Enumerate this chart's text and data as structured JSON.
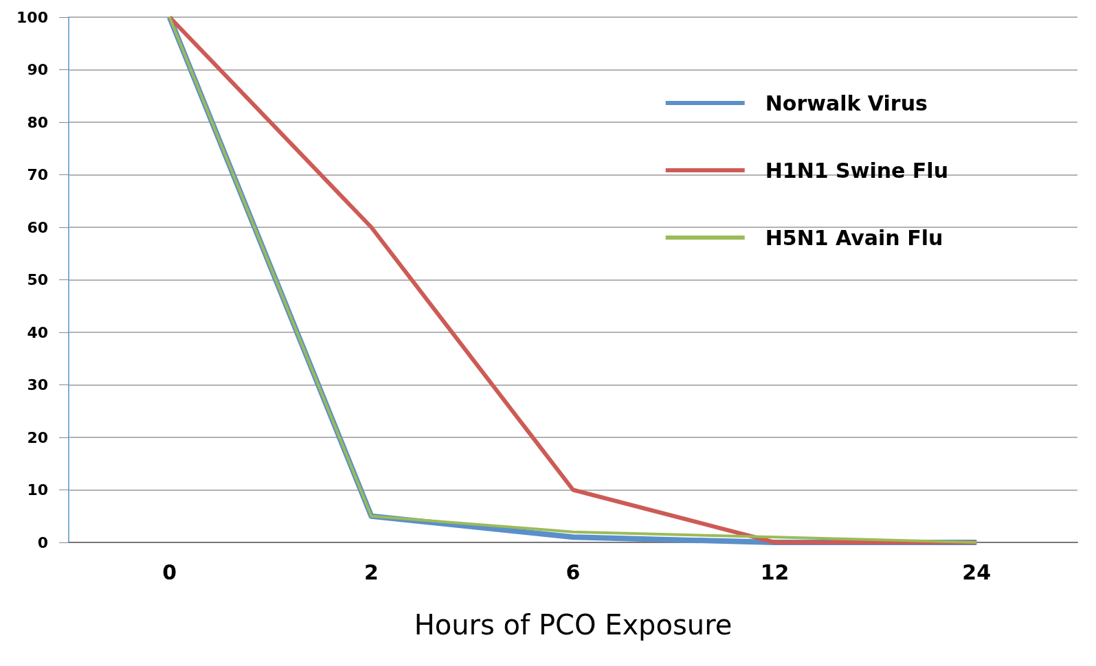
{
  "chart_data": {
    "type": "line",
    "xlabel": "Hours of PCO Exposure",
    "categories": [
      "0",
      "2",
      "6",
      "12",
      "24"
    ],
    "series": [
      {
        "name": "Norwalk Virus",
        "color": "#5b8fc9",
        "values": [
          100,
          5,
          1,
          0,
          0
        ]
      },
      {
        "name": "H1N1 Swine Flu",
        "color": "#cd5b55",
        "values": [
          100,
          60,
          10,
          0,
          0
        ]
      },
      {
        "name": "H5N1 Avain Flu",
        "color": "#9bbb59",
        "values": [
          100,
          5,
          2,
          1,
          0
        ]
      }
    ],
    "ylim": [
      0,
      100
    ],
    "yticks": [
      0,
      10,
      20,
      30,
      40,
      50,
      60,
      70,
      80,
      90,
      100
    ],
    "grid": "y",
    "legend": "top right"
  }
}
